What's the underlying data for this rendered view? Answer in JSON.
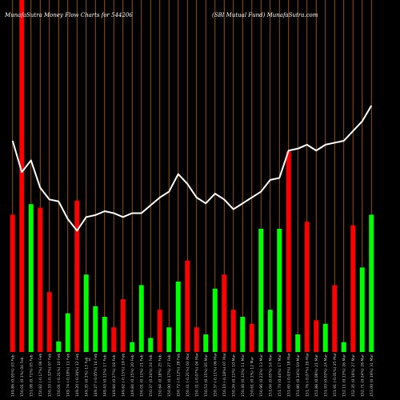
{
  "header": {
    "left": "MunafaSutra  Money Flow  Charts for 544206",
    "right": "(SBI Mutual Fund) MunafaSutra.com"
  },
  "chart_data": {
    "type": "bar",
    "bar_colors": {
      "up": "#00ff00",
      "down": "#ff0000"
    },
    "grid_color": "#b5651d",
    "line_color": "#ffffff",
    "marker_text": "s",
    "categories": [
      "149.86 (0.05%) 03 Feb",
      "150.01 (0.1%) 04 Feb",
      "151.08 (0.71%) 05 Feb",
      "150.82 (-0.17%) 06 Feb",
      "150.33 (-0.32%) 07 Feb",
      "150.01 (-0.21%) 10 Feb",
      "149.74 (-0.18%) 11 Feb",
      "149.20 (-0.36%) 12 Feb",
      "149.35 (0.1%) 13 Feb",
      "149.27 (-0.05%) 14 Feb",
      "149.43 (0.11%) 17 Feb",
      "149.84 (0.27%) 18 Feb",
      "149.62 (-0.15%) 19 Feb",
      "149.84 (0.15%) 20 Feb",
      "150.01 (0.11%) 21 Feb",
      "150.37 (0.24%) 24 Feb",
      "150.64 (0.18%) 25 Feb",
      "150.90 (0.17%) 27 Feb",
      "150.72 (-0.12%) 28 Feb",
      "150.41 (-0.21%) 03 Mar",
      "150.31 (-0.07%) 04 Mar",
      "150.53 (0.15%) 05 Mar",
      "150.37 (-0.11%) 06 Mar",
      "150.10 (-0.18%) 07 Mar",
      "150.26 (0.11%) 10 Mar",
      "150.46 (0.13%) 11 Mar",
      "150.61 (0.1%) 12 Mar",
      "150.96 (0.23%) 13 Mar",
      "151.04 (0.05%) 14 Mar",
      "151.70 (0.44%) 17 Mar",
      "151.65 (-0.03%) 18 Mar",
      "151.86 (0.14%) 19 Mar",
      "151.76 (-0.07%) 20 Mar",
      "151.88 (0.08%) 21 Mar",
      "151.93 (0.03%) 24 Mar",
      "151.91 (-0.01%) 25 Mar",
      "152.11 (0.13%) 26 Mar",
      "152.35 (0.16%) 27 Mar",
      "152.71 (0.24%) 28 Mar",
      "153.00 (0.19%) 31 Mar"
    ],
    "price": [
      149.86,
      150.01,
      151.08,
      150.82,
      150.33,
      150.01,
      149.74,
      149.2,
      149.35,
      149.27,
      149.43,
      149.84,
      149.62,
      149.84,
      150.01,
      150.37,
      150.64,
      150.9,
      150.72,
      150.41,
      150.31,
      150.53,
      150.37,
      150.1,
      150.26,
      150.46,
      150.61,
      150.96,
      151.04,
      151.7,
      151.65,
      151.86,
      151.76,
      151.88,
      151.93,
      151.91,
      152.11,
      152.35,
      152.71,
      153.0
    ],
    "line_y": [
      151.4,
      150.6,
      150.9,
      150.2,
      149.9,
      149.85,
      149.4,
      149.1,
      149.45,
      149.5,
      149.6,
      149.55,
      149.45,
      149.55,
      149.55,
      149.75,
      149.95,
      150.1,
      150.55,
      150.3,
      149.95,
      149.8,
      150.05,
      149.9,
      149.65,
      149.8,
      149.95,
      150.1,
      150.4,
      150.45,
      151.15,
      151.2,
      151.3,
      151.15,
      151.3,
      151.35,
      151.4,
      151.65,
      151.9,
      152.3
    ],
    "line_range": [
      146,
      155
    ],
    "bars": [
      {
        "value": 1.95,
        "dir": "down"
      },
      {
        "value": 5.0,
        "dir": "down"
      },
      {
        "value": 2.1,
        "dir": "up"
      },
      {
        "value": 2.05,
        "dir": "down"
      },
      {
        "value": 0.85,
        "dir": "down"
      },
      {
        "value": 0.15,
        "dir": "up"
      },
      {
        "value": 0.55,
        "dir": "up"
      },
      {
        "value": 2.15,
        "dir": "down"
      },
      {
        "value": 1.1,
        "dir": "up"
      },
      {
        "value": 0.65,
        "dir": "up"
      },
      {
        "value": 0.5,
        "dir": "up"
      },
      {
        "value": 0.35,
        "dir": "down"
      },
      {
        "value": 0.75,
        "dir": "down"
      },
      {
        "value": 0.14,
        "dir": "up"
      },
      {
        "value": 0.95,
        "dir": "up"
      },
      {
        "value": 0.2,
        "dir": "up"
      },
      {
        "value": 0.6,
        "dir": "down"
      },
      {
        "value": 0.35,
        "dir": "up"
      },
      {
        "value": 1.0,
        "dir": "up"
      },
      {
        "value": 1.3,
        "dir": "down"
      },
      {
        "value": 0.35,
        "dir": "down"
      },
      {
        "value": 0.25,
        "dir": "up"
      },
      {
        "value": 0.9,
        "dir": "up"
      },
      {
        "value": 1.1,
        "dir": "down"
      },
      {
        "value": 0.6,
        "dir": "down"
      },
      {
        "value": 0.5,
        "dir": "up"
      },
      {
        "value": 0.4,
        "dir": "down"
      },
      {
        "value": 1.75,
        "dir": "up"
      },
      {
        "value": 0.6,
        "dir": "up"
      },
      {
        "value": 1.75,
        "dir": "up"
      },
      {
        "value": 2.85,
        "dir": "down"
      },
      {
        "value": 0.25,
        "dir": "up"
      },
      {
        "value": 1.85,
        "dir": "down"
      },
      {
        "value": 0.45,
        "dir": "down"
      },
      {
        "value": 0.4,
        "dir": "up"
      },
      {
        "value": 0.95,
        "dir": "down"
      },
      {
        "value": 0.14,
        "dir": "up"
      },
      {
        "value": 1.8,
        "dir": "down"
      },
      {
        "value": 1.2,
        "dir": "up"
      },
      {
        "value": 1.95,
        "dir": "up"
      }
    ],
    "bar_max": 5.0,
    "grid": true
  }
}
